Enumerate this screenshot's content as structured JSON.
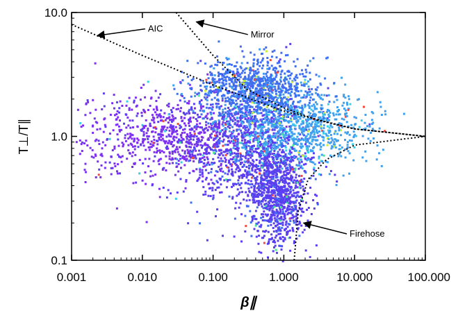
{
  "chart_data": {
    "type": "scatter",
    "title": "",
    "xlabel": "β∥",
    "ylabel": "T⊥/T∥",
    "x_scale": "log",
    "y_scale": "log",
    "xlim": [
      0.001,
      100
    ],
    "ylim": [
      0.1,
      10
    ],
    "x_ticks": [
      {
        "value": 0.001,
        "label": "0.001"
      },
      {
        "value": 0.01,
        "label": "0.010"
      },
      {
        "value": 0.1,
        "label": "0.100"
      },
      {
        "value": 1,
        "label": "1.000"
      },
      {
        "value": 10,
        "label": "10.000"
      },
      {
        "value": 100,
        "label": "100.000"
      }
    ],
    "y_ticks": [
      {
        "value": 0.1,
        "label": "0.1"
      },
      {
        "value": 1,
        "label": "1.0"
      },
      {
        "value": 10,
        "label": "10.0"
      }
    ],
    "grid": false,
    "density_colors": [
      "#7d2ff0",
      "#5a3ff0",
      "#3f6ff0",
      "#3fa0f0",
      "#38d0e8",
      "#3ff08a",
      "#c8f040",
      "#f04a3f"
    ],
    "density_regions": [
      {
        "x_center": 0.03,
        "y_center": 1.0,
        "x_spread_decades": 0.75,
        "y_spread_decades": 0.17,
        "level": 0
      },
      {
        "x_center": 0.3,
        "y_center": 0.8,
        "x_spread_decades": 0.45,
        "y_spread_decades": 0.25,
        "level": 1
      },
      {
        "x_center": 1.5,
        "y_center": 1.2,
        "x_spread_decades": 0.5,
        "y_spread_decades": 0.15,
        "level": 3
      },
      {
        "x_center": 0.4,
        "y_center": 2.5,
        "x_spread_decades": 0.4,
        "y_spread_decades": 0.12,
        "level": 2
      },
      {
        "x_center": 0.8,
        "y_center": 0.35,
        "x_spread_decades": 0.2,
        "y_spread_decades": 0.2,
        "level": 1
      }
    ],
    "threshold_curves": [
      {
        "name": "AIC",
        "points": [
          [
            0.001,
            8.0
          ],
          [
            0.01,
            4.5
          ],
          [
            0.1,
            2.6
          ],
          [
            1,
            1.6
          ],
          [
            10,
            1.15
          ],
          [
            100,
            1.0
          ]
        ]
      },
      {
        "name": "Mirror",
        "points": [
          [
            0.03,
            10.0
          ],
          [
            0.1,
            4.5
          ],
          [
            0.3,
            2.4
          ],
          [
            1,
            1.7
          ],
          [
            3,
            1.35
          ],
          [
            10,
            1.15
          ],
          [
            100,
            1.0
          ]
        ]
      },
      {
        "name": "Firehose",
        "points": [
          [
            1.4,
            0.1
          ],
          [
            1.6,
            0.25
          ],
          [
            2.2,
            0.45
          ],
          [
            4,
            0.65
          ],
          [
            10,
            0.85
          ],
          [
            100,
            1.0
          ]
        ]
      }
    ],
    "annotations": [
      {
        "text": "AIC",
        "label_at": [
          0.012,
          7.0
        ],
        "arrow_to": [
          0.0023,
          6.5
        ]
      },
      {
        "text": "Mirror",
        "label_at": [
          0.34,
          6.3
        ],
        "arrow_to": [
          0.058,
          8.4
        ]
      },
      {
        "text": "Firehose",
        "label_at": [
          8.5,
          0.155
        ],
        "arrow_to": [
          1.9,
          0.2
        ]
      }
    ]
  }
}
